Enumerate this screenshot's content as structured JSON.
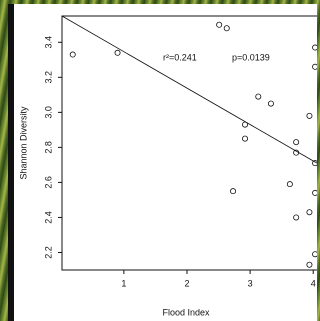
{
  "chart_data": {
    "type": "scatter",
    "x_label": "Flood Index",
    "y_label": "Shannon Diversity",
    "annotations": [
      "r²=0.241",
      "p=0.0139"
    ],
    "x": [
      0.19,
      0.9,
      2.51,
      2.63,
      3.13,
      3.33,
      2.92,
      2.92,
      2.73,
      3.73,
      3.73,
      3.94,
      3.63,
      3.73,
      3.94,
      4.03,
      4.03,
      4.03,
      4.03,
      4.03,
      3.94
    ],
    "values": [
      3.33,
      3.34,
      3.5,
      3.48,
      3.09,
      3.05,
      2.93,
      2.85,
      2.55,
      2.83,
      2.77,
      2.98,
      2.59,
      2.4,
      2.43,
      3.37,
      3.26,
      2.71,
      2.54,
      2.19,
      2.13
    ],
    "trendline": {
      "x": [
        0.02,
        4.06
      ],
      "y": [
        3.55,
        2.71
      ]
    },
    "xlim": [
      0.02,
      4.06
    ],
    "ylim": [
      2.1,
      3.55
    ],
    "xticks": [
      1,
      2,
      3,
      4
    ],
    "yticks": [
      2.2,
      2.4,
      2.6,
      2.8,
      {
        "value": 3,
        "label": "3.0"
      },
      3.2,
      3.4
    ],
    "color": "#111111"
  }
}
